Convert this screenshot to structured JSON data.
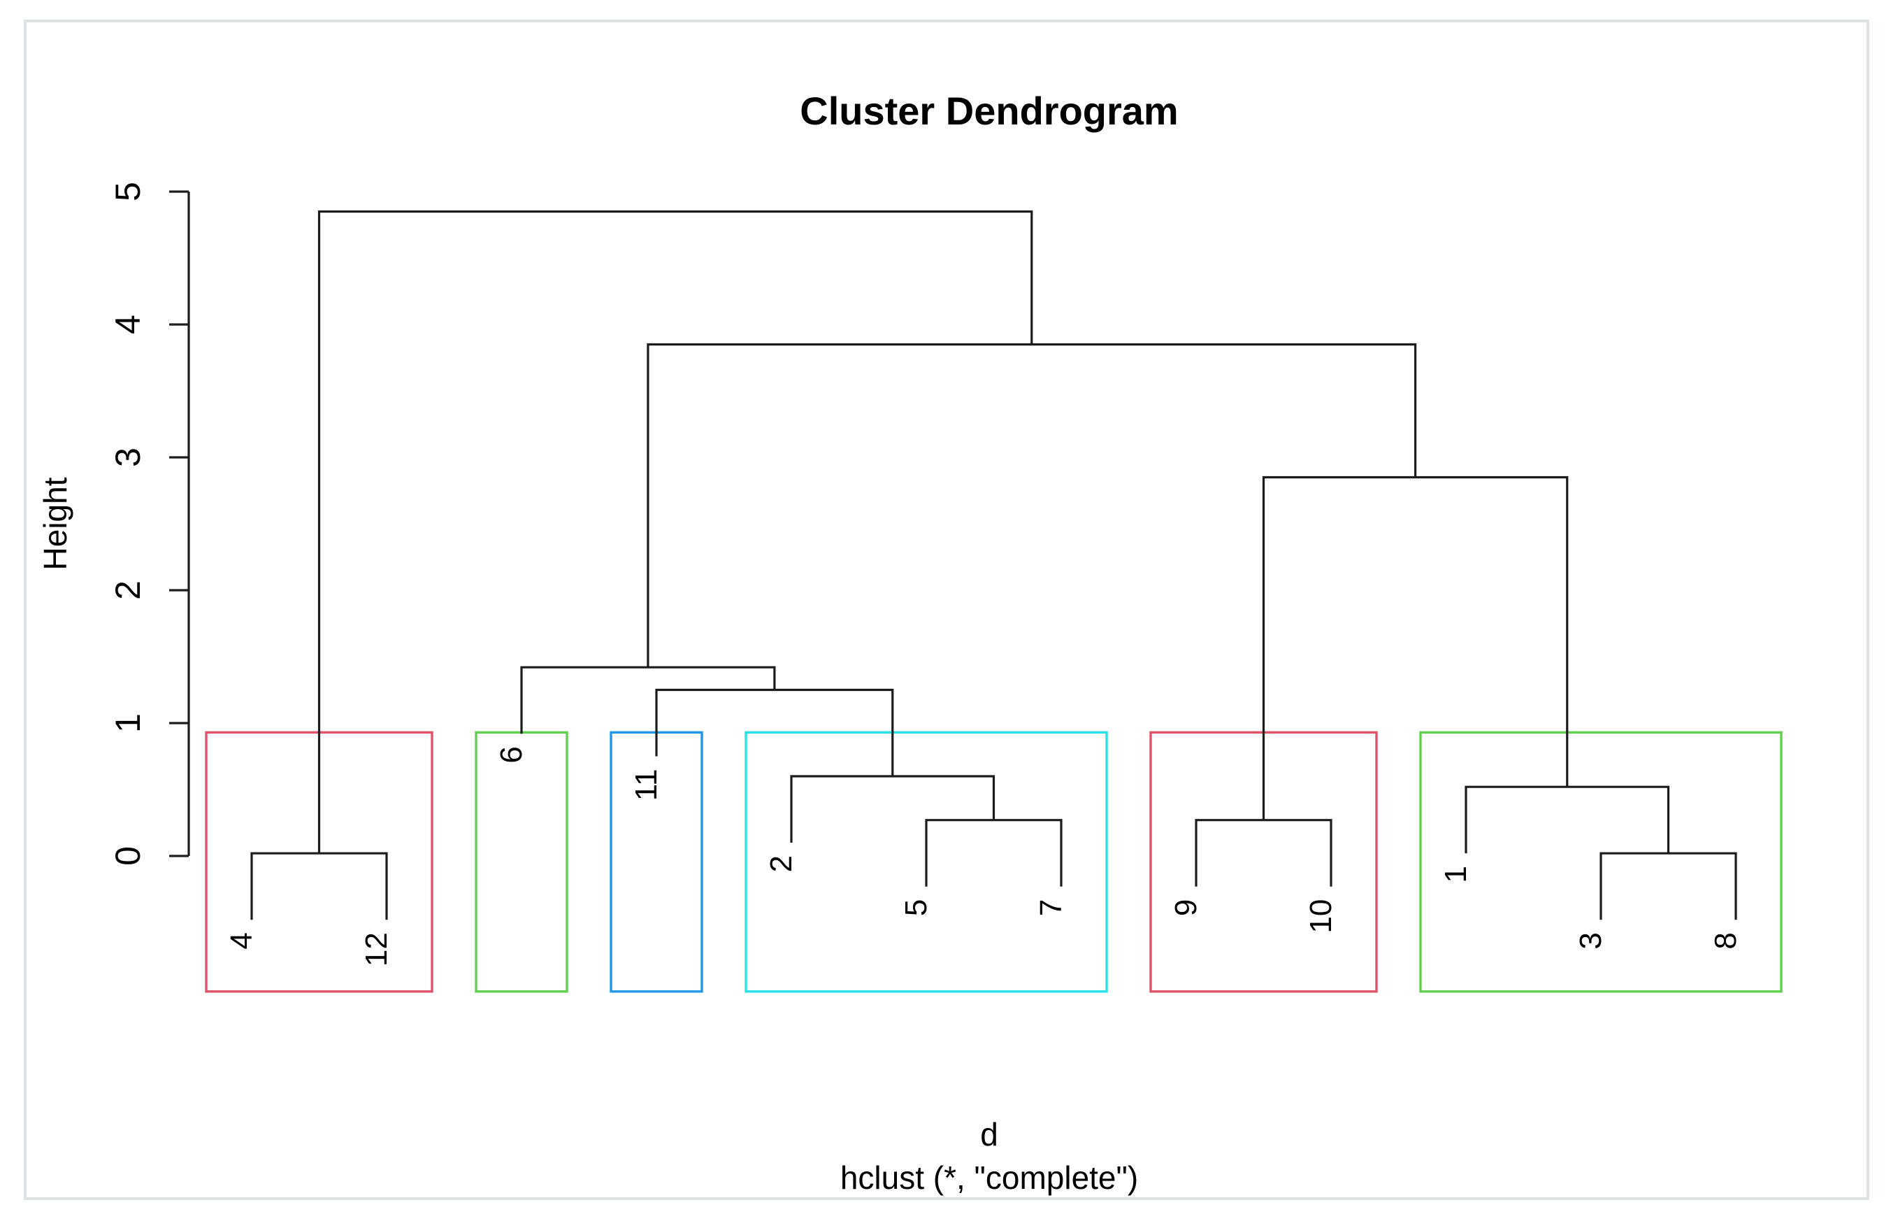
{
  "chart_data": {
    "type": "dendrogram",
    "title": "Cluster Dendrogram",
    "ylabel": "Height",
    "xlabel_line1": "d",
    "xlabel_line2": "hclust (*, \"complete\")",
    "y_ticks": [
      0,
      1,
      2,
      3,
      4,
      5
    ],
    "ylim": [
      0,
      5
    ],
    "hang": 0.5,
    "leaves": [
      "4",
      "12",
      "6",
      "11",
      "2",
      "5",
      "7",
      "9",
      "10",
      "1",
      "3",
      "8"
    ],
    "merges": [
      {
        "id": "A",
        "children": [
          "4",
          "12"
        ],
        "height": 0.02
      },
      {
        "id": "B",
        "children": [
          "5",
          "7"
        ],
        "height": 0.27
      },
      {
        "id": "C",
        "children": [
          "2",
          "B"
        ],
        "height": 0.6
      },
      {
        "id": "D",
        "children": [
          "11",
          "C"
        ],
        "height": 1.25
      },
      {
        "id": "E",
        "children": [
          "6",
          "D"
        ],
        "height": 1.42
      },
      {
        "id": "F",
        "children": [
          "9",
          "10"
        ],
        "height": 0.27
      },
      {
        "id": "G",
        "children": [
          "3",
          "8"
        ],
        "height": 0.02
      },
      {
        "id": "H",
        "children": [
          "1",
          "G"
        ],
        "height": 0.52
      },
      {
        "id": "I",
        "children": [
          "F",
          "H"
        ],
        "height": 2.85
      },
      {
        "id": "J",
        "children": [
          "E",
          "I"
        ],
        "height": 3.85
      },
      {
        "id": "K",
        "children": [
          "A",
          "J"
        ],
        "height": 4.85
      }
    ],
    "cluster_boxes": [
      {
        "leaves": [
          "4",
          "12"
        ],
        "color": "#DF536B"
      },
      {
        "leaves": [
          "6"
        ],
        "color": "#61D04F"
      },
      {
        "leaves": [
          "11"
        ],
        "color": "#2297E6"
      },
      {
        "leaves": [
          "2",
          "5",
          "7"
        ],
        "color": "#28E2E5"
      },
      {
        "leaves": [
          "9",
          "10"
        ],
        "color": "#DF536B"
      },
      {
        "leaves": [
          "1",
          "3",
          "8"
        ],
        "color": "#61D04F"
      }
    ],
    "colors": {
      "branch_line": "#1c1c1c",
      "axis_line": "#1c1c1c",
      "text": "#000000",
      "frame": "#dde2e7",
      "background": "#ffffff"
    },
    "legend": null,
    "grid": false
  }
}
